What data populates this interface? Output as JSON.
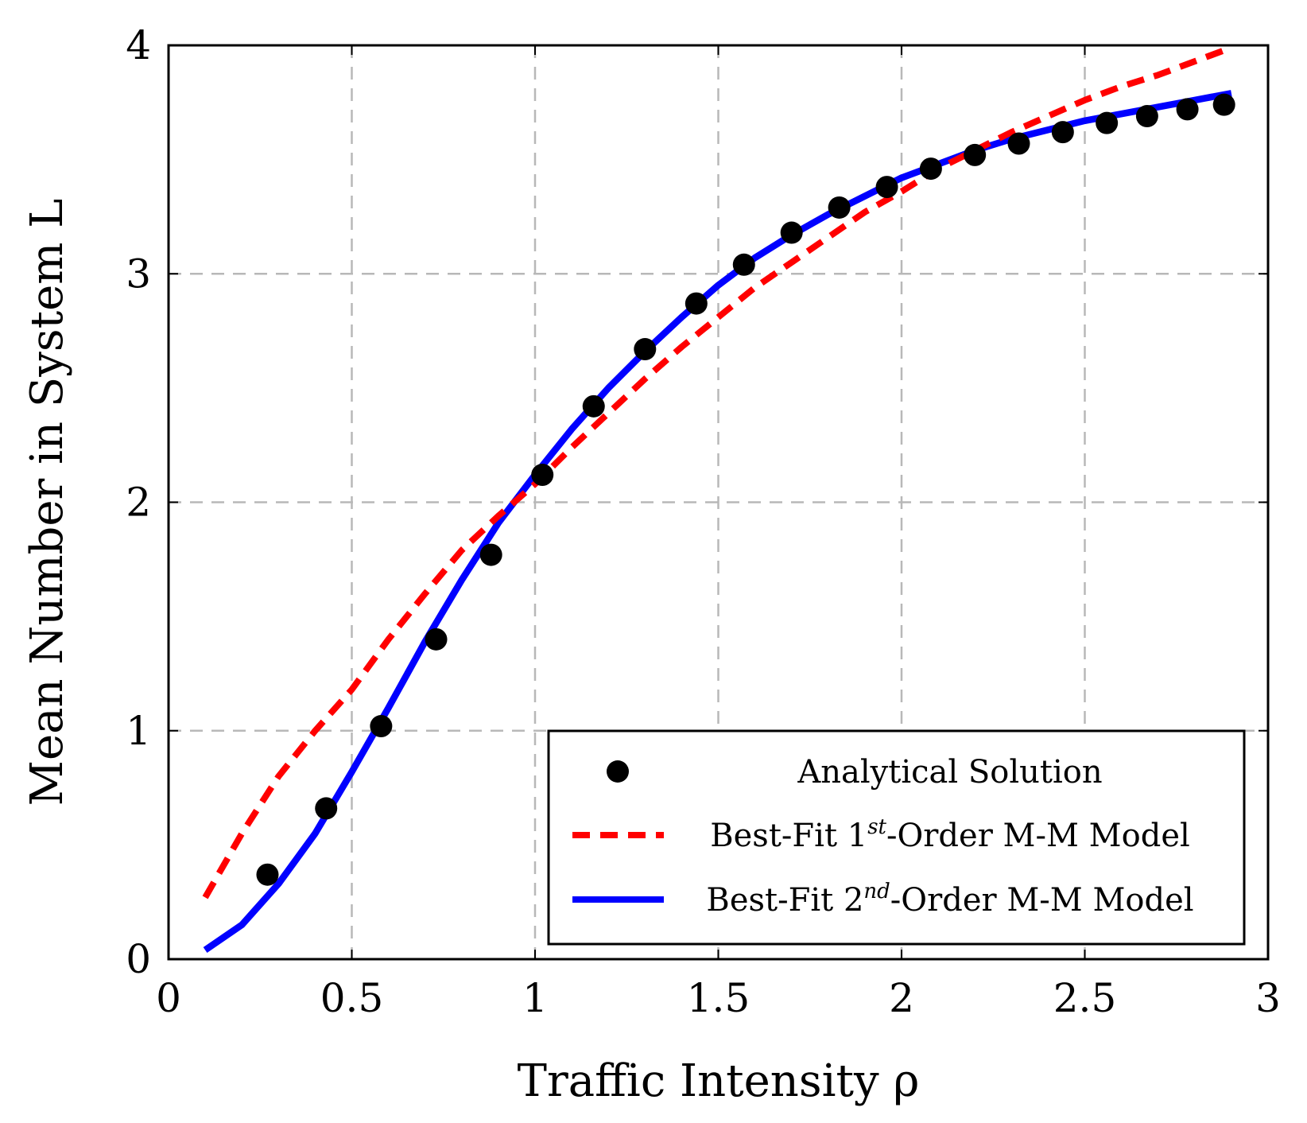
{
  "chart_data": {
    "type": "line",
    "xlabel": "Traffic Intensity ρ",
    "ylabel": "Mean Number in System L",
    "xlim": [
      0,
      3
    ],
    "ylim": [
      0,
      4
    ],
    "xticks": [
      0,
      0.5,
      1,
      1.5,
      2,
      2.5,
      3
    ],
    "xtick_labels": [
      "0",
      "0.5",
      "1",
      "1.5",
      "2",
      "2.5",
      "3"
    ],
    "yticks": [
      0,
      1,
      2,
      3,
      4
    ],
    "ytick_labels": [
      "0",
      "1",
      "2",
      "3",
      "4"
    ],
    "grid": true,
    "legend_position": "bottom-right",
    "series": [
      {
        "name": "Analytical Solution",
        "kind": "scatter",
        "color": "#000000",
        "x": [
          0.27,
          0.43,
          0.58,
          0.73,
          0.88,
          1.02,
          1.16,
          1.3,
          1.44,
          1.57,
          1.7,
          1.83,
          1.96,
          2.08,
          2.2,
          2.32,
          2.44,
          2.56,
          2.67,
          2.78,
          2.88
        ],
        "y": [
          0.37,
          0.66,
          1.02,
          1.4,
          1.77,
          2.12,
          2.42,
          2.67,
          2.87,
          3.04,
          3.18,
          3.29,
          3.38,
          3.46,
          3.52,
          3.57,
          3.62,
          3.66,
          3.69,
          3.72,
          3.74
        ]
      },
      {
        "name": "Best-Fit 1st-Order M-M Model",
        "name_parts": [
          "Best-Fit 1",
          "st",
          "-Order M-M Model"
        ],
        "kind": "dashed-line",
        "color": "#ff0000",
        "x": [
          0.1,
          0.2,
          0.3,
          0.4,
          0.5,
          0.6,
          0.7,
          0.8,
          0.9,
          1.0,
          1.1,
          1.2,
          1.3,
          1.4,
          1.5,
          1.6,
          1.7,
          1.8,
          1.9,
          2.0,
          2.1,
          2.2,
          2.3,
          2.4,
          2.5,
          2.6,
          2.7,
          2.8,
          2.9
        ],
        "y": [
          0.27,
          0.55,
          0.8,
          1.0,
          1.18,
          1.4,
          1.6,
          1.79,
          1.94,
          2.08,
          2.24,
          2.39,
          2.54,
          2.68,
          2.81,
          2.94,
          3.05,
          3.16,
          3.27,
          3.36,
          3.46,
          3.54,
          3.62,
          3.69,
          3.76,
          3.82,
          3.87,
          3.93,
          3.99
        ]
      },
      {
        "name": "Best-Fit 2nd-Order M-M Model",
        "name_parts": [
          "Best-Fit 2",
          "nd",
          "-Order M-M Model"
        ],
        "kind": "solid-line",
        "color": "#0000ff",
        "x": [
          0.1,
          0.2,
          0.3,
          0.4,
          0.5,
          0.6,
          0.7,
          0.8,
          0.9,
          1.0,
          1.1,
          1.2,
          1.3,
          1.4,
          1.5,
          1.6,
          1.7,
          1.8,
          1.9,
          2.0,
          2.1,
          2.2,
          2.3,
          2.4,
          2.5,
          2.6,
          2.7,
          2.8,
          2.9
        ],
        "y": [
          0.04,
          0.15,
          0.33,
          0.55,
          0.82,
          1.1,
          1.39,
          1.66,
          1.91,
          2.12,
          2.32,
          2.5,
          2.66,
          2.81,
          2.95,
          3.07,
          3.17,
          3.26,
          3.34,
          3.42,
          3.48,
          3.54,
          3.59,
          3.63,
          3.67,
          3.7,
          3.73,
          3.76,
          3.79
        ]
      }
    ]
  }
}
